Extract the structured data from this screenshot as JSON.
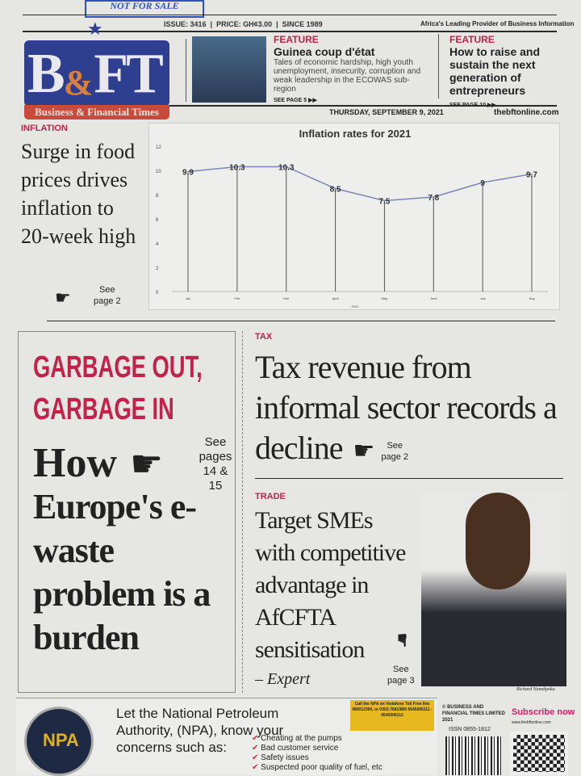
{
  "masthead": {
    "logo_text": "B&FT",
    "logo_subtitle": "Business & Financial Times",
    "stamp": "NOT FOR SALE",
    "issue": "ISSUE: 3416",
    "price": "PRICE: GH¢3.00",
    "since": "SINCE 1989",
    "tagline": "Africa's Leading Provider of Business Information",
    "date": "THURSDAY, SEPTEMBER 9, 2021",
    "website": "thebftonline.com"
  },
  "features": [
    {
      "label": "FEATURE",
      "title": "Guinea coup d'état",
      "desc": "Tales of economic hardship, high youth unemployment, insecurity, corruption and weak leadership in the ECOWAS sub-region",
      "see": "SEE PAGE 5"
    },
    {
      "label": "FEATURE",
      "title": "How to raise and sustain the next generation of entrepreneurs",
      "see": "SEE PAGE 10"
    }
  ],
  "inflation": {
    "label": "INFLATION",
    "headline": "Surge in food prices drives inflation to 20-week high",
    "see": "See",
    "page": "page 2"
  },
  "chart_data": {
    "type": "line",
    "title": "Inflation rates for 2021",
    "xlabel": "2021",
    "ylabel": "",
    "categories": [
      "Jan",
      "Feb",
      "Mar",
      "April",
      "May",
      "June",
      "July",
      "Aug"
    ],
    "values": [
      9.9,
      10.3,
      10.3,
      8.5,
      7.5,
      7.8,
      9,
      9.7
    ],
    "data_labels": [
      "9.9",
      "10.3",
      "10.3",
      "8.5",
      "7.5",
      "7.8",
      "9",
      "9.7"
    ],
    "ylim": [
      0,
      12
    ],
    "yticks": [
      "0",
      "2",
      "4",
      "6",
      "8",
      "10",
      "12"
    ],
    "grid": false,
    "drop_lines": true,
    "line_color": "#7a86b8"
  },
  "garbage": {
    "kicker1": "GARBAGE OUT,",
    "kicker2": "GARBAGE IN",
    "headline1": "How",
    "headline2": "Europe's e-waste problem is a burden",
    "see": "See",
    "pages": "pages",
    "page_nums": "14 & 15"
  },
  "tax": {
    "label": "TAX",
    "headline": "Tax revenue from informal sector records a decline",
    "see": "See",
    "page": "page 2"
  },
  "trade": {
    "label": "TRADE",
    "headline": "Target SMEs with competitive advantage in AfCFTA sensitisation",
    "byline": "– Expert",
    "see": "See",
    "page": "page 3",
    "photo_caption": "Richard Nanekpoka"
  },
  "ad": {
    "logo_text": "NPA",
    "logo_ring": "NATIONAL PETROLEUM AUTHORITY",
    "headline": "Let the National Petroleum Authority, (NPA), know your concerns such as:",
    "items": [
      "Cheating at the pumps",
      "Bad customer service",
      "Safety issues",
      "Suspected poor quality of fuel, etc"
    ],
    "callout": "Call the NPA on Vodafone Toll Free line 080012300, or 0302-768198/9 0545006111 - 0545006112"
  },
  "footer": {
    "copyright": "© BUSINESS AND FINANCIAL TIMES LIMITED 2021",
    "issn": "ISSN 0855-1812",
    "subscribe": "Subscribe now",
    "subscribe_url": "www.thebftonline.com"
  }
}
